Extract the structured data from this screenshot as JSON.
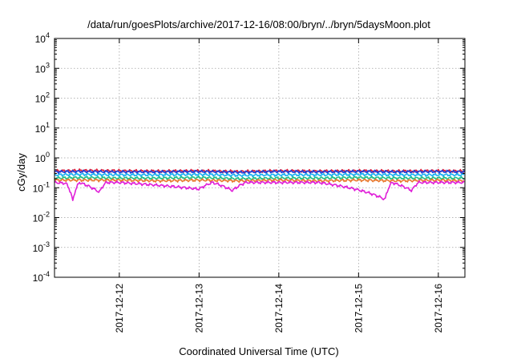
{
  "chart_data": {
    "type": "line",
    "title": "/data/run/goesPlots/archive/2017-12-16/08:00/bryn/../bryn/5daysMoon.plot",
    "xlabel": "Coordinated Universal Time (UTC)",
    "ylabel": "cGy/day",
    "yscale": "log",
    "ylim": [
      0.0001,
      10000
    ],
    "y_ticks": [
      {
        "base": "10",
        "exp": "-4",
        "value": 0.0001
      },
      {
        "base": "10",
        "exp": "-3",
        "value": 0.001
      },
      {
        "base": "10",
        "exp": "-2",
        "value": 0.01
      },
      {
        "base": "10",
        "exp": "-1",
        "value": 0.1
      },
      {
        "base": "10",
        "exp": "0",
        "value": 1
      },
      {
        "base": "10",
        "exp": "1",
        "value": 10
      },
      {
        "base": "10",
        "exp": "2",
        "value": 100
      },
      {
        "base": "10",
        "exp": "3",
        "value": 1000
      },
      {
        "base": "10",
        "exp": "4",
        "value": 10000
      }
    ],
    "xlim": [
      "2017-12-11T04:30",
      "2017-12-16T08:00"
    ],
    "x_ticks": [
      "2017-12-12",
      "2017-12-13",
      "2017-12-14",
      "2017-12-15",
      "2017-12-16"
    ],
    "grid": true,
    "series": [
      {
        "color": "#e0203a",
        "level": 0.36,
        "points": [
          [
            "2017-12-11T04:30",
            0.36
          ],
          [
            "2017-12-11T12:00",
            0.38
          ],
          [
            "2017-12-12T00:00",
            0.37
          ],
          [
            "2017-12-12T12:00",
            0.36
          ],
          [
            "2017-12-13T00:00",
            0.37
          ],
          [
            "2017-12-13T12:00",
            0.35
          ],
          [
            "2017-12-14T00:00",
            0.37
          ],
          [
            "2017-12-14T12:00",
            0.36
          ],
          [
            "2017-12-15T00:00",
            0.37
          ],
          [
            "2017-12-15T12:00",
            0.36
          ],
          [
            "2017-12-16T00:00",
            0.37
          ],
          [
            "2017-12-16T08:00",
            0.36
          ]
        ]
      },
      {
        "color": "#1f3fd8",
        "level": 0.34,
        "points": [
          [
            "2017-12-11T04:30",
            0.34
          ],
          [
            "2017-12-11T12:00",
            0.35
          ],
          [
            "2017-12-12T00:00",
            0.34
          ],
          [
            "2017-12-12T12:00",
            0.34
          ],
          [
            "2017-12-13T00:00",
            0.35
          ],
          [
            "2017-12-13T12:00",
            0.33
          ],
          [
            "2017-12-14T00:00",
            0.35
          ],
          [
            "2017-12-14T12:00",
            0.34
          ],
          [
            "2017-12-15T00:00",
            0.35
          ],
          [
            "2017-12-15T12:00",
            0.34
          ],
          [
            "2017-12-16T00:00",
            0.35
          ],
          [
            "2017-12-16T08:00",
            0.34
          ]
        ]
      },
      {
        "color": "#1ab0f0",
        "level": 0.27,
        "points": [
          [
            "2017-12-11T04:30",
            0.27
          ],
          [
            "2017-12-11T12:00",
            0.28
          ],
          [
            "2017-12-12T00:00",
            0.27
          ],
          [
            "2017-12-12T12:00",
            0.27
          ],
          [
            "2017-12-13T00:00",
            0.28
          ],
          [
            "2017-12-13T12:00",
            0.26
          ],
          [
            "2017-12-14T00:00",
            0.27
          ],
          [
            "2017-12-14T12:00",
            0.27
          ],
          [
            "2017-12-15T00:00",
            0.28
          ],
          [
            "2017-12-15T12:00",
            0.27
          ],
          [
            "2017-12-16T00:00",
            0.27
          ],
          [
            "2017-12-16T08:00",
            0.27
          ]
        ]
      },
      {
        "color": "#20c08a",
        "level": 0.21,
        "points": [
          [
            "2017-12-11T04:30",
            0.21
          ],
          [
            "2017-12-11T12:00",
            0.22
          ],
          [
            "2017-12-12T00:00",
            0.21
          ],
          [
            "2017-12-12T12:00",
            0.21
          ],
          [
            "2017-12-13T00:00",
            0.22
          ],
          [
            "2017-12-13T12:00",
            0.2
          ],
          [
            "2017-12-14T00:00",
            0.21
          ],
          [
            "2017-12-14T12:00",
            0.21
          ],
          [
            "2017-12-15T00:00",
            0.22
          ],
          [
            "2017-12-15T12:00",
            0.21
          ],
          [
            "2017-12-16T00:00",
            0.21
          ],
          [
            "2017-12-16T08:00",
            0.21
          ]
        ]
      },
      {
        "color": "#e87a30",
        "level": 0.18,
        "points": [
          [
            "2017-12-11T04:30",
            0.18
          ],
          [
            "2017-12-11T12:00",
            0.18
          ],
          [
            "2017-12-12T00:00",
            0.18
          ],
          [
            "2017-12-12T12:00",
            0.17
          ],
          [
            "2017-12-13T00:00",
            0.18
          ],
          [
            "2017-12-13T12:00",
            0.17
          ],
          [
            "2017-12-14T00:00",
            0.18
          ],
          [
            "2017-12-14T12:00",
            0.17
          ],
          [
            "2017-12-15T00:00",
            0.18
          ],
          [
            "2017-12-15T12:00",
            0.17
          ],
          [
            "2017-12-16T00:00",
            0.18
          ],
          [
            "2017-12-16T08:00",
            0.17
          ]
        ]
      },
      {
        "color": "#e020d8",
        "level": 0.15,
        "points": [
          [
            "2017-12-11T04:30",
            0.15
          ],
          [
            "2017-12-11T08:00",
            0.14
          ],
          [
            "2017-12-11T10:00",
            0.035
          ],
          [
            "2017-12-11T12:00",
            0.15
          ],
          [
            "2017-12-11T18:00",
            0.07
          ],
          [
            "2017-12-11T20:00",
            0.15
          ],
          [
            "2017-12-12T00:00",
            0.15
          ],
          [
            "2017-12-13T00:00",
            0.09
          ],
          [
            "2017-12-13T04:00",
            0.15
          ],
          [
            "2017-12-13T10:00",
            0.08
          ],
          [
            "2017-12-13T14:00",
            0.15
          ],
          [
            "2017-12-14T00:00",
            0.15
          ],
          [
            "2017-12-14T12:00",
            0.15
          ],
          [
            "2017-12-15T08:00",
            0.04
          ],
          [
            "2017-12-15T10:00",
            0.15
          ],
          [
            "2017-12-15T16:00",
            0.08
          ],
          [
            "2017-12-15T18:00",
            0.15
          ],
          [
            "2017-12-16T00:00",
            0.15
          ],
          [
            "2017-12-16T08:00",
            0.15
          ]
        ]
      }
    ]
  }
}
